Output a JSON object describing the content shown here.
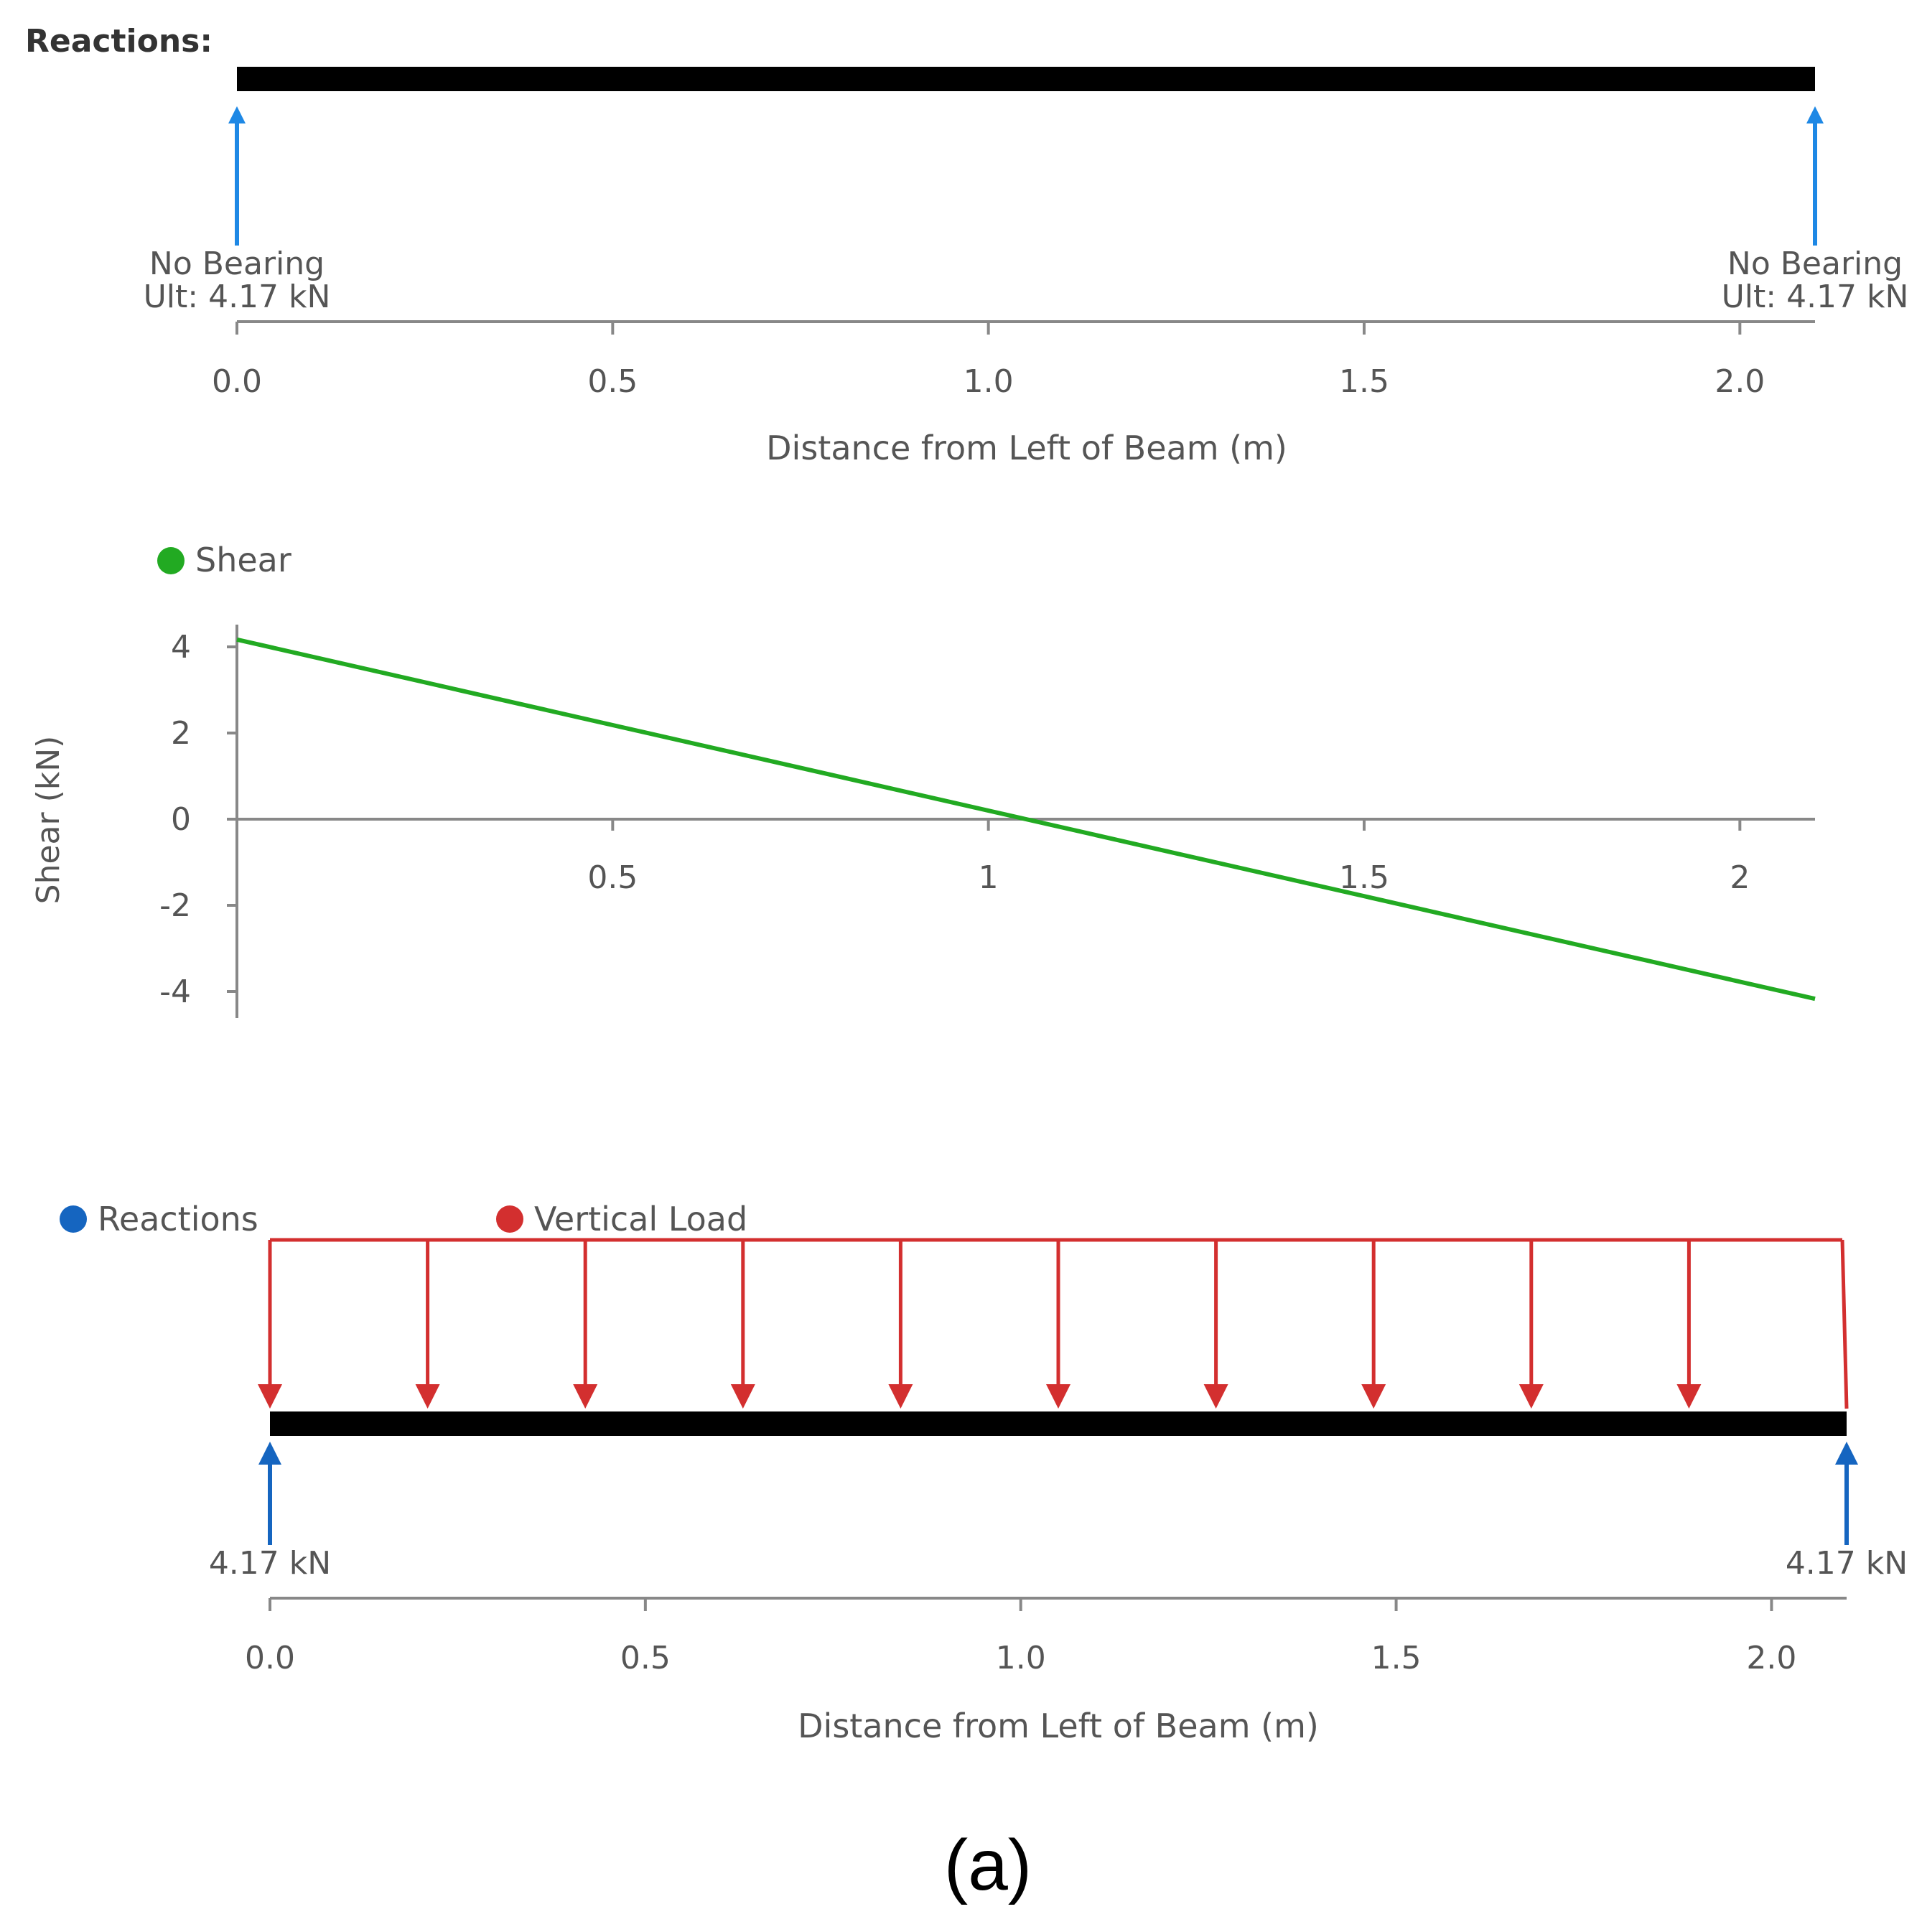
{
  "chart_data": [
    {
      "type": "diagram",
      "heading": "Reactions:",
      "x_axis": {
        "label": "Distance from Left of Beam (m)",
        "ticks": [
          "0.0",
          "0.5",
          "1.0",
          "1.5",
          "2.0"
        ],
        "range": [
          0,
          2.1
        ]
      },
      "supports": [
        {
          "x": 0.0,
          "line1": "No Bearing",
          "line2": "Ult: 4.17 kN"
        },
        {
          "x": 2.1,
          "line1": "No Bearing",
          "line2": "Ult: 4.17 kN"
        }
      ]
    },
    {
      "type": "line",
      "legend": [
        {
          "name": "Shear",
          "color": "#22aa22"
        }
      ],
      "ylabel": "Shear (kN)",
      "y_ticks": [
        "4",
        "2",
        "0",
        "-2",
        "-4"
      ],
      "x_ticks": [
        "0.5",
        "1",
        "1.5",
        "2"
      ],
      "xlim": [
        0,
        2.1
      ],
      "ylim": [
        -4.5,
        4.5
      ],
      "series": [
        {
          "name": "Shear",
          "x": [
            0,
            2.1
          ],
          "y": [
            4.17,
            -4.17
          ]
        }
      ]
    },
    {
      "type": "diagram",
      "legend": [
        {
          "name": "Reactions",
          "color": "#1565c0"
        },
        {
          "name": "Vertical Load",
          "color": "#d32f2f"
        }
      ],
      "x_axis": {
        "label": "Distance from Left of Beam (m)",
        "ticks": [
          "0.0",
          "0.5",
          "1.0",
          "1.5",
          "2.0"
        ],
        "range": [
          0,
          2.1
        ]
      },
      "load": {
        "type": "uniform",
        "start": 0.0,
        "end": 2.1
      },
      "reactions": [
        {
          "x": 0.0,
          "label": "4.17 kN"
        },
        {
          "x": 2.1,
          "label": "4.17 kN"
        }
      ]
    }
  ],
  "caption": "(a)"
}
